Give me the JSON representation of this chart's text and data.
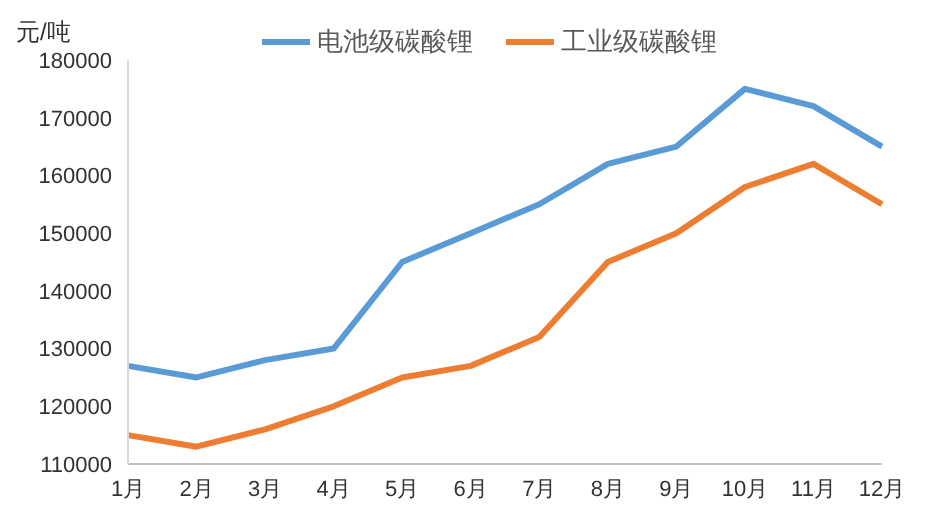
{
  "chart_data": {
    "type": "line",
    "ylabel": "元/吨",
    "categories": [
      "1月",
      "2月",
      "3月",
      "4月",
      "5月",
      "6月",
      "7月",
      "8月",
      "9月",
      "10月",
      "11月",
      "12月"
    ],
    "series": [
      {
        "name": "电池级碳酸锂",
        "color": "#5b9bd5",
        "values": [
          127000,
          125000,
          128000,
          130000,
          145000,
          150000,
          155000,
          162000,
          165000,
          175000,
          172000,
          165000
        ]
      },
      {
        "name": "工业级碳酸锂",
        "color": "#ed7d31",
        "values": [
          115000,
          113000,
          116000,
          120000,
          125000,
          127000,
          132000,
          145000,
          150000,
          158000,
          162000,
          155000
        ]
      }
    ],
    "ylim": [
      110000,
      180000
    ],
    "yticks": [
      110000,
      120000,
      130000,
      140000,
      150000,
      160000,
      170000,
      180000
    ],
    "grid": false,
    "legend": "top",
    "marker": "none",
    "line_style": "solid"
  }
}
